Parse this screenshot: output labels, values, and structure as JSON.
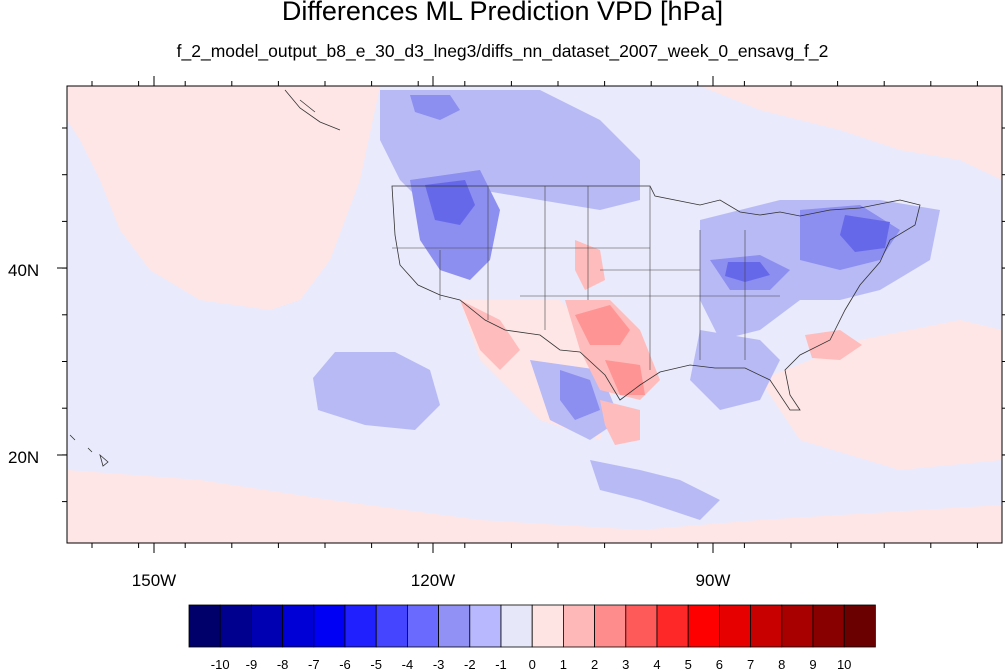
{
  "title": "Differences ML Prediction VPD [hPa]",
  "subtitle": "f_2_model_output_b8_e_30_d3_lneg3/diffs_nn_dataset_2007_week_0_ensavg_f_2",
  "axes": {
    "lat_labels": [
      "40N",
      "20N"
    ],
    "lon_labels": [
      "150W",
      "120W",
      "90W"
    ]
  },
  "colorbar": {
    "labels": [
      "-10",
      "-9",
      "-8",
      "-7",
      "-6",
      "-5",
      "-4",
      "-3",
      "-2",
      "-1",
      "0",
      "1",
      "2",
      "3",
      "4",
      "5",
      "6",
      "7",
      "8",
      "9",
      "10"
    ],
    "colors": [
      "#00006b",
      "#00008f",
      "#0000b3",
      "#0000d6",
      "#0000f5",
      "#2020ff",
      "#4545ff",
      "#6a6aff",
      "#9090f5",
      "#b8b8ff",
      "#e6e8fa",
      "#ffe4e4",
      "#ffb8b8",
      "#ff8c8c",
      "#ff5a5a",
      "#ff2828",
      "#ff0000",
      "#e60000",
      "#c80000",
      "#a80000",
      "#880000",
      "#6a0000"
    ]
  }
}
